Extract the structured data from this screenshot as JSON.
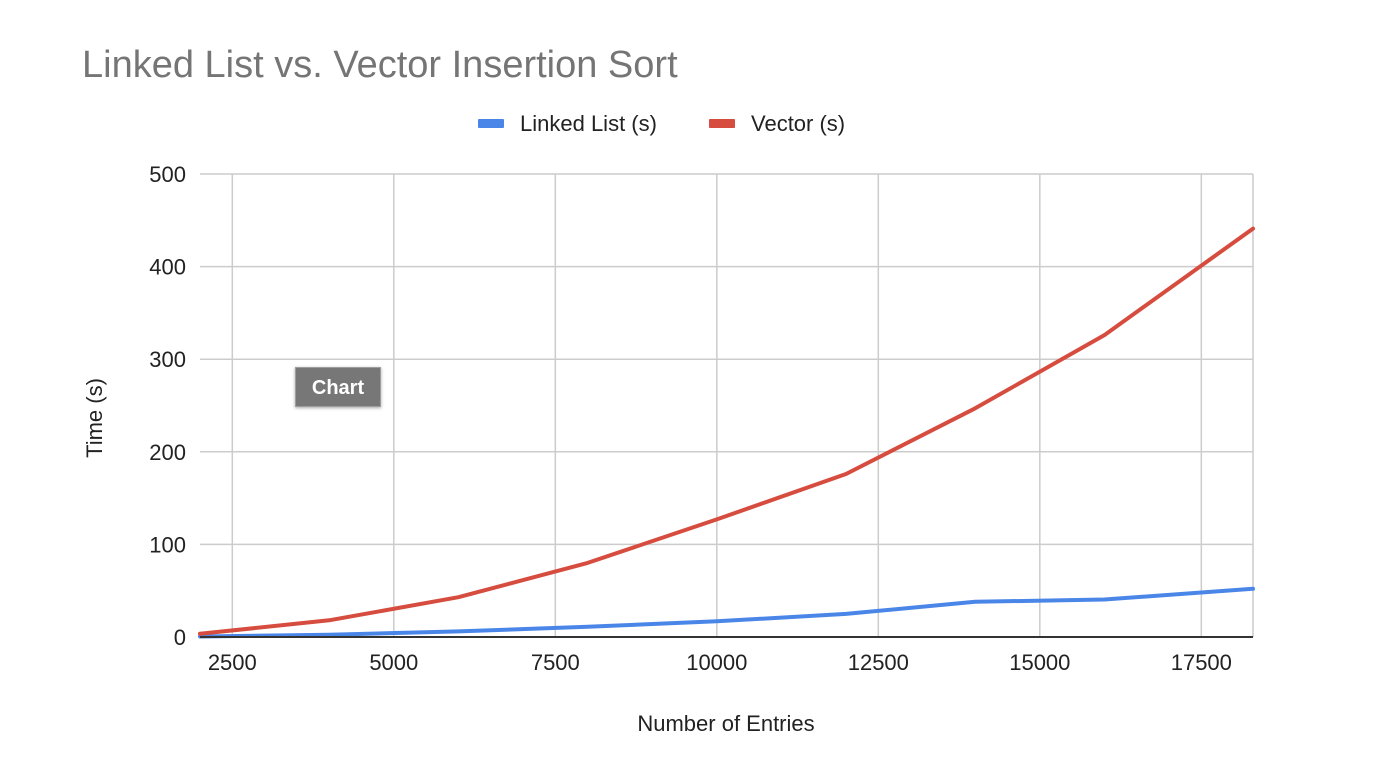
{
  "chart_data": {
    "type": "line",
    "title": "Linked List vs. Vector Insertion Sort",
    "xlabel": "Number of Entries",
    "ylabel": "Time (s)",
    "x": [
      2000,
      4000,
      6000,
      8000,
      10000,
      12000,
      14000,
      16000,
      18300
    ],
    "series": [
      {
        "name": "Linked List (s)",
        "color": "#4a86e8",
        "values": [
          0.5,
          2.5,
          6,
          11,
          17,
          25,
          38,
          40.5,
          52
        ]
      },
      {
        "name": "Vector (s)",
        "color": "#d64c3e",
        "values": [
          3.5,
          18,
          43,
          80,
          127,
          176,
          247,
          326,
          441
        ]
      }
    ],
    "xlim": [
      2000,
      18300
    ],
    "ylim": [
      0,
      500
    ],
    "xticks": [
      2500,
      5000,
      7500,
      10000,
      12500,
      15000,
      17500
    ],
    "yticks": [
      0,
      100,
      200,
      300,
      400,
      500
    ],
    "grid": true,
    "legend": "top-center",
    "tooltip": "Chart"
  }
}
